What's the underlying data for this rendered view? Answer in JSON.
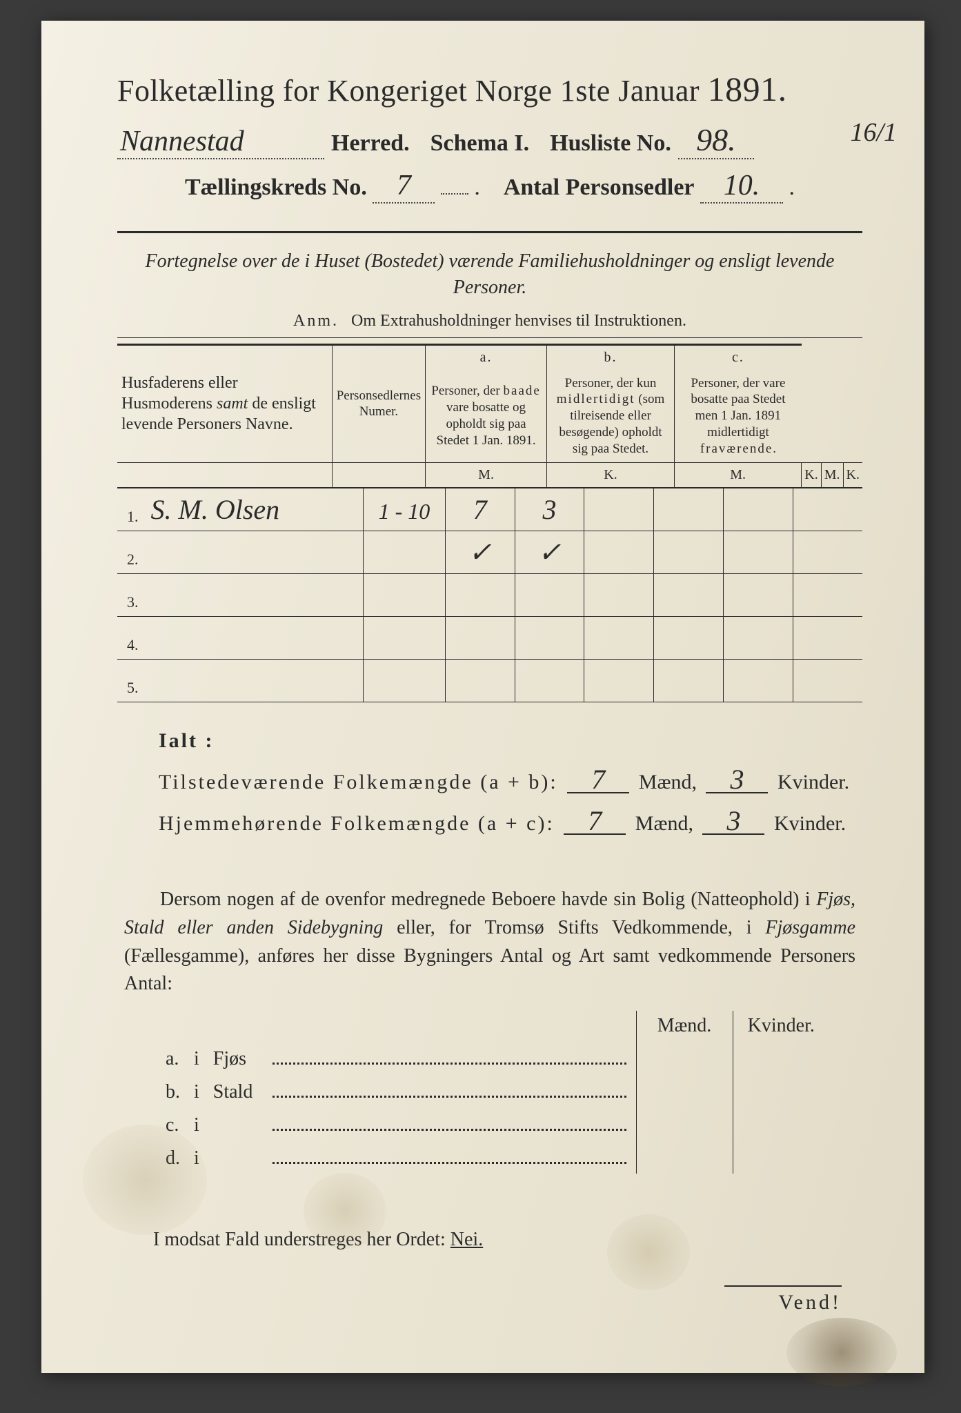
{
  "title": {
    "main": "Folketælling for Kongeriget Norge 1ste Januar",
    "year": "1891."
  },
  "header": {
    "herred_hw": "Nannestad",
    "herred_label": "Herred.",
    "schema_label": "Schema I.",
    "husliste_label": "Husliste No.",
    "husliste_hw": "98.",
    "margin_hw": "16/1",
    "kreds_label": "Tællingskreds No.",
    "kreds_hw": "7",
    "antal_label": "Antal Personsedler",
    "antal_hw": "10."
  },
  "subheading": "Fortegnelse over de i Huset (Bostedet) værende Familiehusholdninger og ensligt levende Personer.",
  "anm_label": "Anm.",
  "anm_text": "Om Extrahusholdninger henvises til Instruktionen.",
  "table": {
    "col_name": "Husfaderens eller Husmoderens samt de ensligt levende Personers Navne.",
    "col_num": "Personsedlernes Numer.",
    "a_label": "a.",
    "a_text": "Personer, der baade vare bosatte og opholdt sig paa Stedet 1 Jan. 1891.",
    "b_label": "b.",
    "b_text": "Personer, der kun midlertidigt (som tilreisende eller besøgende) opholdt sig paa Stedet.",
    "c_label": "c.",
    "c_text": "Personer, der vare bosatte paa Stedet men 1 Jan. 1891 midlertidigt fraværende.",
    "m": "M.",
    "k": "K.",
    "rows": [
      {
        "n": "1.",
        "name": "S. M. Olsen",
        "num": "1 - 10",
        "am": "7",
        "ak": "3",
        "bm": "",
        "bk": "",
        "cm": "",
        "ck": ""
      },
      {
        "n": "2.",
        "name": "",
        "num": "",
        "am": "✓",
        "ak": "✓",
        "bm": "",
        "bk": "",
        "cm": "",
        "ck": ""
      },
      {
        "n": "3.",
        "name": "",
        "num": "",
        "am": "",
        "ak": "",
        "bm": "",
        "bk": "",
        "cm": "",
        "ck": ""
      },
      {
        "n": "4.",
        "name": "",
        "num": "",
        "am": "",
        "ak": "",
        "bm": "",
        "bk": "",
        "cm": "",
        "ck": ""
      },
      {
        "n": "5.",
        "name": "",
        "num": "",
        "am": "",
        "ak": "",
        "bm": "",
        "bk": "",
        "cm": "",
        "ck": ""
      }
    ]
  },
  "ialt": {
    "header": "Ialt :",
    "line1_label": "Tilstedeværende Folkemængde (a + b):",
    "line2_label": "Hjemmehørende Folkemængde (a + c):",
    "maend": "Mænd,",
    "kvinder": "Kvinder.",
    "l1_m": "7",
    "l1_k": "3",
    "l2_m": "7",
    "l2_k": "3"
  },
  "para": "Dersom nogen af de ovenfor medregnede Beboere havde sin Bolig (Natteophold) i Fjøs, Stald eller anden Sidebygning eller, for Tromsø Stifts Vedkommende, i Fjøsgamme (Fællesgamme), anføres her disse Bygningers Antal og Art samt vedkommende Personers Antal:",
  "sub": {
    "maend": "Mænd.",
    "kvinder": "Kvinder.",
    "rows": [
      {
        "k": "a.",
        "i": "i",
        "t": "Fjøs"
      },
      {
        "k": "b.",
        "i": "i",
        "t": "Stald"
      },
      {
        "k": "c.",
        "i": "i",
        "t": ""
      },
      {
        "k": "d.",
        "i": "i",
        "t": ""
      }
    ]
  },
  "nei": {
    "text": "I modsat Fald understreges her Ordet:",
    "word": "Nei."
  },
  "vend": "Vend!",
  "colors": {
    "paper": "#ede8d8",
    "ink": "#2a2a2a",
    "background": "#3a3a3a"
  }
}
